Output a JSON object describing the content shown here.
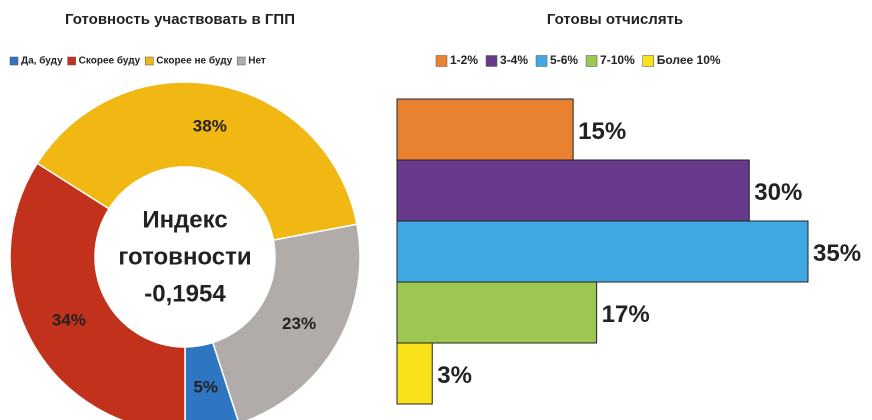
{
  "chart_data": [
    {
      "type": "donut",
      "title": "Готовность участвовать в ГПП",
      "categories": [
        "Да, буду",
        "Скорее буду",
        "Скорее не буду",
        "Нет"
      ],
      "values": [
        5,
        34,
        38,
        23
      ],
      "value_labels": [
        "5%",
        "34%",
        "38%",
        "23%"
      ],
      "colors": [
        "#2e75c2",
        "#c1311b",
        "#f1b814",
        "#b1acaa"
      ],
      "center_text": [
        "Индекс",
        "готовности",
        "-0,1954"
      ],
      "legend": "top"
    },
    {
      "type": "hbar",
      "title": "Готовы отчислять",
      "categories": [
        "1-2%",
        "3-4%",
        "5-6%",
        "7-10%",
        "Более 10%"
      ],
      "values": [
        15,
        30,
        35,
        17,
        3
      ],
      "value_labels": [
        "15%",
        "30%",
        "35%",
        "17%",
        "3%"
      ],
      "colors": [
        "#e88230",
        "#673a8c",
        "#40a9e4",
        "#9ec653",
        "#f9e21a"
      ],
      "legend": "top"
    }
  ]
}
